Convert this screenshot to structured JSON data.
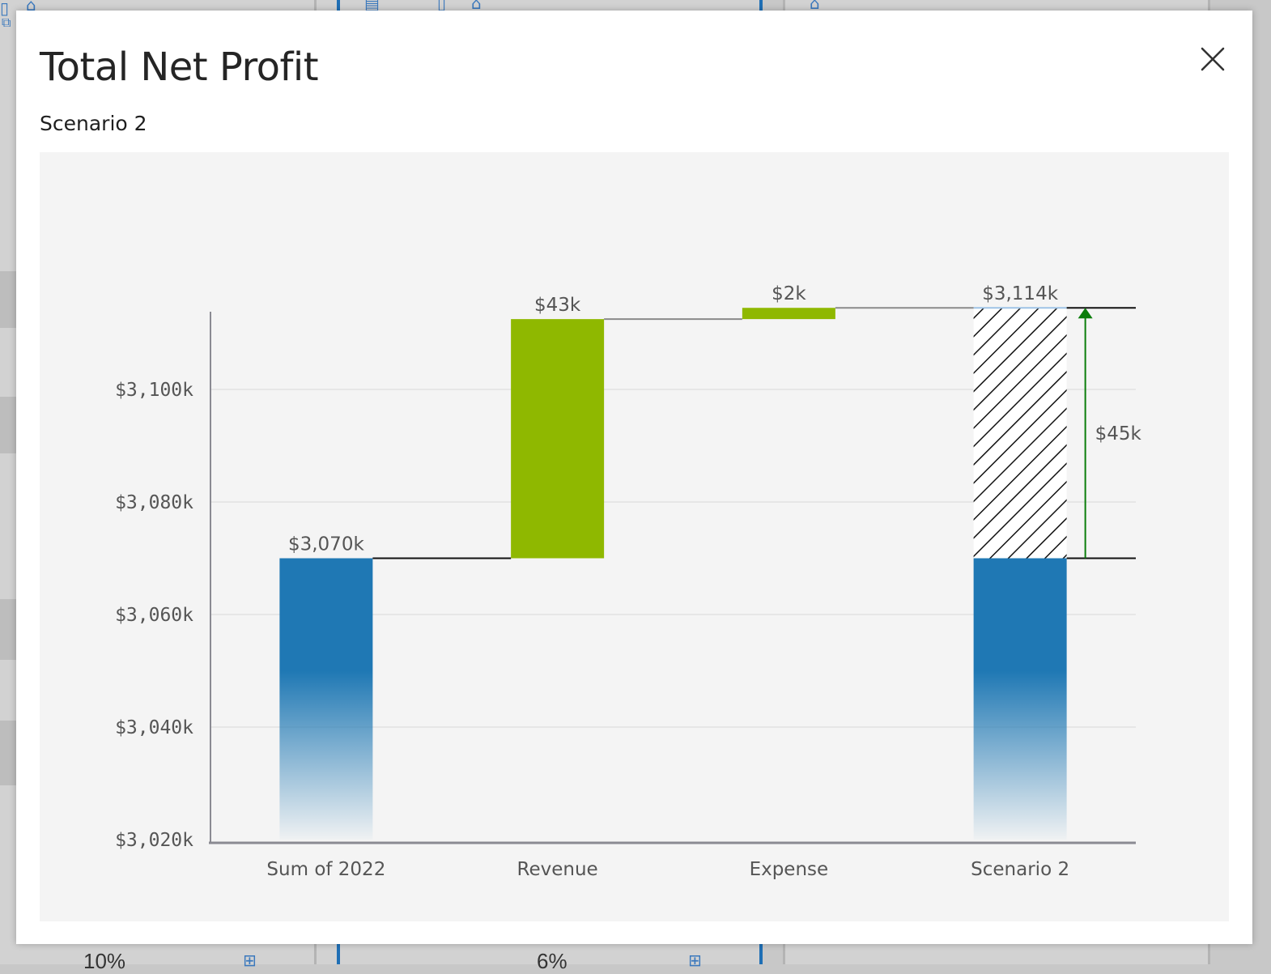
{
  "background": {
    "footer_values": [
      "10%",
      "6%"
    ]
  },
  "modal": {
    "title": "Total Net Profit",
    "subtitle": "Scenario 2",
    "close_icon": "close-icon"
  },
  "colors": {
    "base_bar": "#1f78b4",
    "increase_bar": "#8fb800",
    "delta_arrow": "#0a7d0a",
    "panel_background": "#f4f4f4"
  },
  "chart_data": {
    "type": "bar",
    "subtype": "waterfall",
    "title": "Total Net Profit",
    "subtitle": "Scenario 2",
    "categories": [
      "Sum of 2022",
      "Revenue",
      "Expense",
      "Scenario 2"
    ],
    "bars": [
      {
        "category": "Sum of 2022",
        "kind": "total",
        "start": 3020,
        "end": 3070,
        "label": "$3,070k"
      },
      {
        "category": "Revenue",
        "kind": "increase",
        "start": 3070,
        "end": 3112.5,
        "label": "$43k"
      },
      {
        "category": "Expense",
        "kind": "increase",
        "start": 3112.5,
        "end": 3114.5,
        "label": "$2k"
      },
      {
        "category": "Scenario 2",
        "kind": "total",
        "start": 3020,
        "end": 3114.5,
        "base": 3070,
        "label": "$3,114k"
      }
    ],
    "delta": {
      "from": 3070,
      "to": 3114.5,
      "label": "$45k"
    },
    "y_ticks": [
      "$3,020k",
      "$3,040k",
      "$3,060k",
      "$3,080k",
      "$3,100k"
    ],
    "y_tick_values": [
      3020,
      3040,
      3060,
      3080,
      3100
    ],
    "ylim": [
      3020,
      3115
    ],
    "grid": true,
    "legend": "none"
  }
}
